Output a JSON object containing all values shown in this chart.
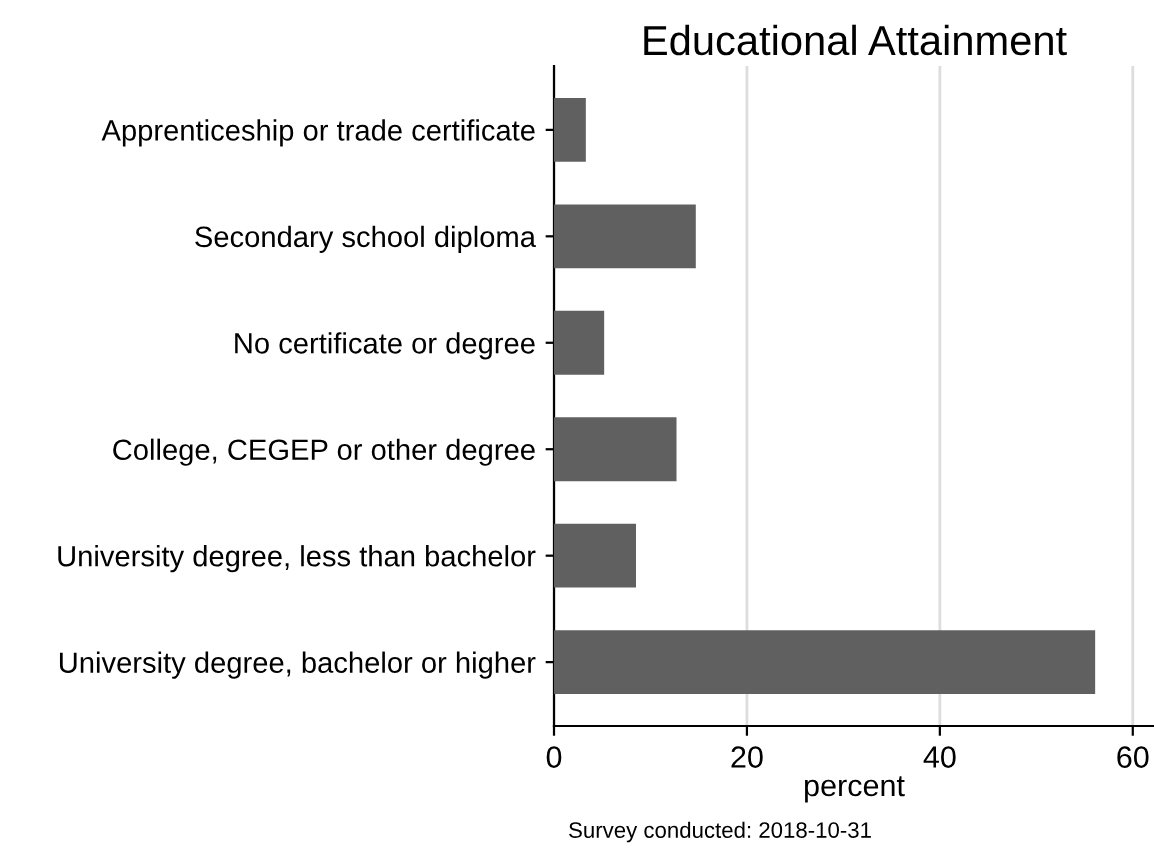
{
  "chart_data": {
    "type": "bar",
    "orientation": "horizontal",
    "title": "Educational Attainment",
    "xlabel": "percent",
    "categories": [
      "Apprenticeship or trade certificate",
      "Secondary school diploma",
      "No certificate or degree",
      "College, CEGEP or other degree",
      "University degree, less than bachelor",
      "University degree, bachelor or higher"
    ],
    "values": [
      3.3,
      14.7,
      5.2,
      12.7,
      8.5,
      56.1
    ],
    "color": "#606060",
    "xlim": [
      0,
      62.2
    ],
    "xticks": [
      0,
      20,
      40,
      60
    ],
    "grid": "x",
    "annotations": [
      "Survey conducted: 2018-10-31"
    ]
  }
}
